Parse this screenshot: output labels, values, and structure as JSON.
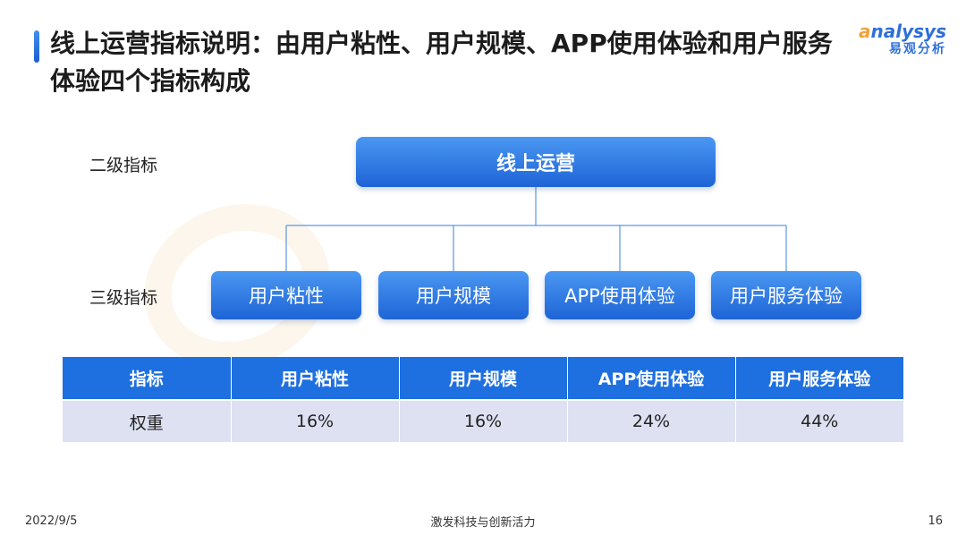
{
  "title": "线上运营指标说明：由用户粘性、用户规模、APP使用体验和用户服务体验四个指标构成",
  "logo": {
    "en_prefix": "a",
    "en_rest": "nalysys",
    "cn": "易观分析"
  },
  "levels": {
    "level2": "二级指标",
    "level3": "三级指标"
  },
  "hierarchy": {
    "root": "线上运营",
    "children": [
      "用户粘性",
      "用户规模",
      "APP使用体验",
      "用户服务体验"
    ]
  },
  "table": {
    "headers": [
      "指标",
      "用户粘性",
      "用户规模",
      "APP使用体验",
      "用户服务体验"
    ],
    "row": [
      "权重",
      "16%",
      "16%",
      "24%",
      "44%"
    ]
  },
  "footer": {
    "date": "2022/9/5",
    "slogan": "激发科技与创新活力",
    "page": "16"
  },
  "colors": {
    "accent": "#1e6fe0",
    "node_top": "#4a97f2",
    "node_bottom": "#1e64d6",
    "table_row": "#dde1f2",
    "logo_orange": "#f2a23a"
  }
}
